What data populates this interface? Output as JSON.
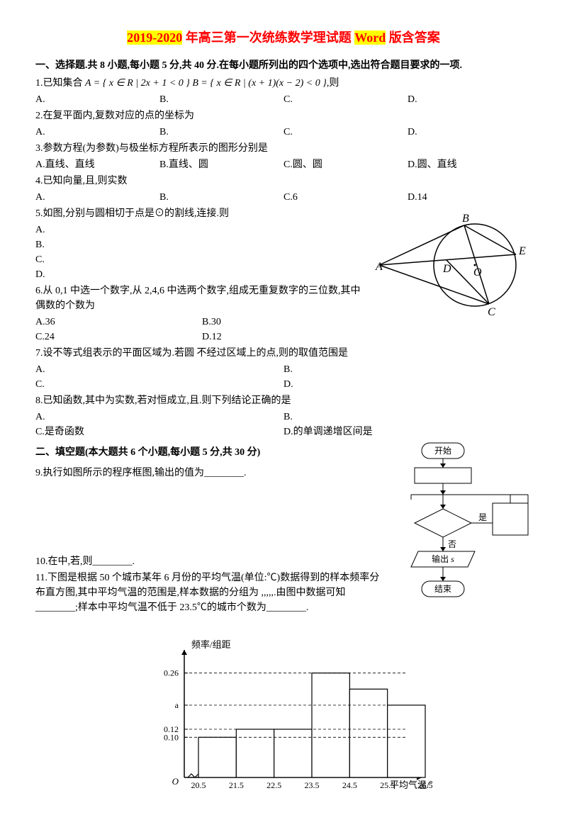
{
  "title": {
    "pre_hl": "2019-2020",
    "mid": " 年高三第一次统练数学理试题 ",
    "word": "Word",
    "suffix": " 版含答案"
  },
  "section1_head": "一、选择题.共 8 小题,每小题 5 分,共 40 分.在每小题所列出的四个选项中,选出符合题目要求的一项.",
  "q1": {
    "stem_pre": "1.已知集合 ",
    "A_eq": "A = { x ∈ R | 2x + 1 < 0 }",
    "mid": " ",
    "B_eq": "B = { x ∈ R | (x + 1)(x − 2) < 0 }",
    "suffix": ",则",
    "opts": {
      "A": "A.",
      "B": "B.",
      "C": "C.",
      "D": "D."
    }
  },
  "q2": {
    "stem": "2.在复平面内,复数对应的点的坐标为",
    "opts": {
      "A": "A.",
      "B": "B.",
      "C": "C.",
      "D": "D."
    }
  },
  "q3": {
    "stem": "3.参数方程(为参数)与极坐标方程所表示的图形分别是",
    "opts": {
      "A": "A.直线、直线",
      "B": "B.直线、圆",
      "C": "C.圆、圆",
      "D": "D.圆、直线"
    }
  },
  "q4": {
    "stem": "4.已知向量,且,则实数",
    "opts": {
      "A": "A.",
      "B": "B.",
      "C": "C.6",
      "D": "D.14"
    }
  },
  "q5": {
    "stem": "5.如图,分别与圆相切于点是⊙的割线,连接.则",
    "opts": {
      "A": "A.",
      "B": "B.",
      "C": "C.",
      "D": "D."
    }
  },
  "q6": {
    "stem": "6.从 0,1 中选一个数字,从 2,4,6 中选两个数字,组成无重复数字的三位数,其中偶数的个数为",
    "opts": {
      "A": "A.36",
      "B": "B.30",
      "C": "C.24",
      "D": "D.12"
    }
  },
  "q7": {
    "stem": "7.设不等式组表示的平面区域为.若圆  不经过区域上的点,则的取值范围是",
    "opts": {
      "A": "A.",
      "B": "B.",
      "C": "C.",
      "D": "D."
    }
  },
  "q8": {
    "stem": "8.已知函数,其中为实数,若对恒成立,且.则下列结论正确的是",
    "opts": {
      "A": "A.",
      "B": "B.",
      "C": "C.是奇函数",
      "D": "D.的单调递增区间是"
    }
  },
  "section2_head": "二、填空题(本大题共 6 个小题,每小题 5 分,共 30 分)",
  "q9": "9.执行如图所示的程序框图,输出的值为________.",
  "q10": "10.在中,若,则________.",
  "q11": "11.下图是根据 50 个城市某年 6 月份的平均气温(单位:℃)数据得到的样本频率分布直方图,其中平均气温的范围是,样本数据的分组为 ,,,,,.由图中数据可知________;样本中平均气温不低于 23.5℃的城市个数为________.",
  "circle_fig": {
    "labels": {
      "A": "A",
      "B": "B",
      "C": "C",
      "D": "D",
      "E": "E",
      "O": "O"
    }
  },
  "flowchart": {
    "start": "开始",
    "yes": "是",
    "no": "否",
    "output_pre": "输出 ",
    "output_var": "s",
    "end": "结束"
  },
  "histogram": {
    "ylabel": "频率/组距",
    "xlabel": "平均气温/℃",
    "yticks": [
      "0.10",
      "0.12",
      "a",
      "0.26"
    ],
    "ytick_vals": [
      0.1,
      0.12,
      0.18,
      0.26
    ],
    "xticks": [
      "20.5",
      "21.5",
      "22.5",
      "23.5",
      "24.5",
      "25.5",
      "26.5"
    ],
    "bars": [
      0.1,
      0.12,
      0.12,
      0.26,
      0.22,
      0.18
    ],
    "bar_fill": "#ffffff",
    "bar_stroke": "#000000",
    "axis_color": "#000000",
    "dash_color": "#000000"
  }
}
